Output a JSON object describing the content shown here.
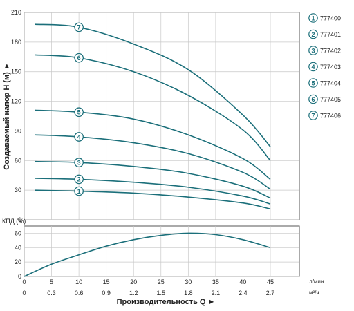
{
  "chart_data": [
    {
      "type": "line",
      "ylabel": "Создаваемый напор H (м) ►",
      "yticks": [
        0,
        30,
        60,
        90,
        120,
        150,
        180,
        210
      ],
      "ylim": [
        0,
        210
      ],
      "xlim": [
        0,
        45
      ],
      "grid": true,
      "color": "#1b6f7a",
      "series": [
        {
          "name": "1",
          "marker_x": 10,
          "x": [
            2,
            10,
            20,
            30,
            40,
            45
          ],
          "y": [
            30,
            29,
            27,
            23,
            17,
            11
          ]
        },
        {
          "name": "2",
          "marker_x": 10,
          "x": [
            2,
            10,
            20,
            30,
            40,
            45
          ],
          "y": [
            42,
            41,
            38,
            33,
            24,
            16
          ]
        },
        {
          "name": "3",
          "marker_x": 10,
          "x": [
            2,
            10,
            20,
            30,
            40,
            45
          ],
          "y": [
            59,
            58,
            54,
            47,
            34,
            22
          ]
        },
        {
          "name": "4",
          "marker_x": 10,
          "x": [
            2,
            10,
            20,
            30,
            40,
            45
          ],
          "y": [
            86,
            84,
            78,
            67,
            48,
            31
          ]
        },
        {
          "name": "5",
          "marker_x": 10,
          "x": [
            2,
            10,
            20,
            30,
            40,
            45
          ],
          "y": [
            111,
            109,
            102,
            86,
            62,
            41
          ]
        },
        {
          "name": "6",
          "marker_x": 10,
          "x": [
            2,
            10,
            20,
            30,
            40,
            45
          ],
          "y": [
            167,
            164,
            150,
            126,
            91,
            60
          ]
        },
        {
          "name": "7",
          "marker_x": 10,
          "x": [
            2,
            10,
            20,
            30,
            40,
            45
          ],
          "y": [
            198,
            195,
            178,
            152,
            106,
            74
          ]
        }
      ]
    },
    {
      "type": "line",
      "ylabel": "КПД (%)",
      "yticks": [
        0,
        20,
        40,
        60
      ],
      "ylim": [
        0,
        70
      ],
      "xlim": [
        0,
        45
      ],
      "grid": true,
      "color": "#1b6f7a",
      "series": [
        {
          "x": [
            0,
            5,
            10,
            15,
            20,
            25,
            30,
            35,
            40,
            45
          ],
          "y": [
            0,
            17,
            30,
            42,
            51,
            57,
            60,
            58,
            51,
            40
          ]
        }
      ]
    }
  ],
  "x_axis": {
    "title": "Производительность Q ►",
    "ticks_lmin": [
      "0",
      "5",
      "10",
      "15",
      "20",
      "25",
      "30",
      "35",
      "40",
      "45"
    ],
    "ticks_m3h": [
      "0",
      "0.3",
      "0.6",
      "0.9",
      "1.2",
      "1.5",
      "1.8",
      "2.1",
      "2.4",
      "2.7"
    ],
    "unit_lmin": "л/мин",
    "unit_m3h": "м³/ч"
  },
  "legend": [
    {
      "num": "1",
      "label": "777400"
    },
    {
      "num": "2",
      "label": "777401"
    },
    {
      "num": "3",
      "label": "777402"
    },
    {
      "num": "4",
      "label": "777403"
    },
    {
      "num": "5",
      "label": "777404"
    },
    {
      "num": "6",
      "label": "777405"
    },
    {
      "num": "7",
      "label": "777406"
    }
  ]
}
